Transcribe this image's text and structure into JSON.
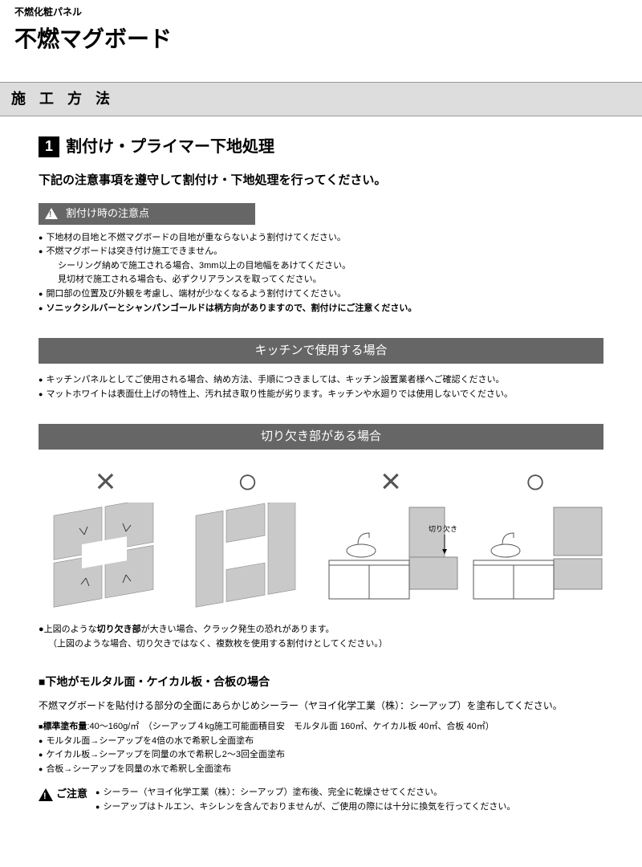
{
  "pretitle": "不燃化粧パネル",
  "title": "不燃マグボード",
  "method_header": "施 工 方 法",
  "step": {
    "num": "1",
    "heading": "割付け・プライマー下地処理"
  },
  "lede": "下記の注意事項を遵守して割付け・下地処理を行ってください。",
  "warn_label": "割付け時の注意点",
  "warn_bullets": {
    "b1": "下地材の目地と不燃マグボードの目地が重ならないよう割付けてください。",
    "b2": "不燃マグボードは突き付け施工できません。",
    "b2s1": "シーリング納めで施工される場合、3mm以上の目地幅をあけてください。",
    "b2s2": "見切材で施工される場合も、必ずクリアランスを取ってください。",
    "b3": "開口部の位置及び外観を考慮し、端材が少なくなるよう割付けてください。",
    "b4": "ソニックシルバーとシャンパンゴールドは柄方向がありますので、割付けにご注意ください。"
  },
  "kitchen_header": "キッチンで使用する場合",
  "kitchen_bullets": {
    "k1": "キッチンパネルとしてご使用される場合、納め方法、手順につきましては、キッチン設置業者様へご確認ください。",
    "k2": "マットホワイトは表面仕上げの特性上、汚れ拭き取り性能が劣ります。キッチンや水廻りでは使用しないでください。"
  },
  "cutout_header": "切り欠き部がある場合",
  "marks": {
    "x": "×",
    "o": "○"
  },
  "cutout_label": "切り欠き",
  "cutout_note1a": "上図のような",
  "cutout_note1b": "切り欠き部",
  "cutout_note1c": "が大きい場合、クラック発生の恐れがあります。",
  "cutout_note2": "（上図のような場合、切り欠きではなく、複数枚を使用する割付けとしてください。）",
  "substrate_head": "■下地がモルタル面・ケイカル板・合板の場合",
  "substrate_p": "不燃マグボードを貼付ける部分の全面にあらかじめシーラー（ヤヨイ化学工業（株）：シーアップ）を塗布してください。",
  "substrate_bullets": {
    "s0b": "標準塗布量",
    "s0": ":40～160g/㎡　（シーアップ４kg施工可能面積目安　モルタル面 160㎡、ケイカル板 40㎡、合板 40㎡）",
    "s1": "モルタル面→シーアップを4倍の水で希釈し全面塗布",
    "s2": "ケイカル板→シーアップを同量の水で希釈し2～3回全面塗布",
    "s3": "合板→シーアップを同量の水で希釈し全面塗布"
  },
  "caution_label": "ご注意",
  "caution_bullets": {
    "c1": "シーラー（ヤヨイ化学工業（株）：シーアップ）塗布後、完全に乾燥させてください。",
    "c2": "シーアップはトルエン、キシレンを含んでおりませんが、ご使用の際には十分に換気を行ってください。"
  },
  "colors": {
    "bar": "#666666",
    "light": "#dddddd",
    "panel": "#c9c9c9",
    "line": "#555555"
  }
}
